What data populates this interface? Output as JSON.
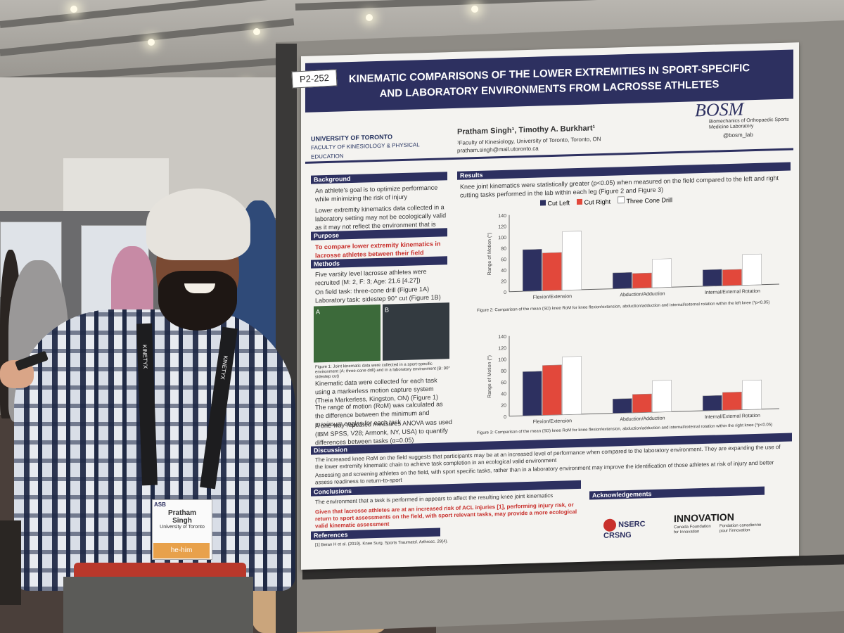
{
  "poster": {
    "id": "P2-252",
    "title_line1": "KINEMATIC COMPARISONS OF THE LOWER EXTREMITIES IN SPORT-SPECIFIC",
    "title_line2": "AND LABORATORY ENVIRONMENTS FROM LACROSSE ATHLETES",
    "authors": "Pratham Singh¹, Timothy A. Burkhart¹",
    "affiliation": "¹Faculty of Kinesiology, University of Toronto, Toronto, ON",
    "email": "pratham.singh@mail.utoronto.ca",
    "university": "UNIVERSITY OF TORONTO",
    "faculty": "FACULTY OF KINESIOLOGY & PHYSICAL EDUCATION",
    "lab_logo": "BOSM",
    "lab_name": "Biomechanics of Orthopaedic Sports Medicine Laboratory",
    "social": "@bosm_lab",
    "background_head": "Background",
    "background_1": "An athlete's goal is to optimize performance while minimizing the risk of injury",
    "background_2": "Lower extremity kinematics data collected in a laboratory setting may not be ecologically valid as it may not reflect the environment that is experienced during sport",
    "purpose_head": "Purpose",
    "purpose": "To compare lower extremity kinematics in lacrosse athletes between their field environment and within the lab",
    "methods_head": "Methods",
    "methods_1": "Five varsity level lacrosse athletes were recruited (M: 2, F: 3; Age: 21.6 [4.27])",
    "methods_2": "On field task: three-cone drill (Figure 1A)",
    "methods_3": "Laboratory task: sidestep 90° cut (Figure 1B)",
    "methods_4": "Kinematic data were collected for each task using a markerless motion capture system (Theia Markerless, Kingston, ON) (Figure 1)",
    "methods_5": "The range of motion (RoM) was calculated as the difference between the minimum and maximum angles for each task",
    "methods_6": "A one-way repeated measures ANOVA was used (IBM SPSS, V28; Armonk, NY, USA) to quantify differences between tasks (α=0.05)",
    "results_head": "Results",
    "results_1": "Knee joint kinematics were statistically greater (p<0.05) when measured on the field compared to the left and right cutting tasks performed in the lab within each leg (Figure 2 and Figure 3)",
    "fig2_caption": "Figure 2: Comparison of the mean (SD) knee RoM for knee flexion/extension, abduction/adduction and internal/external rotation within the left knee (*p<0.05)",
    "fig3_caption": "Figure 3: Comparison of the mean (SD) knee RoM for knee flexion/extension, abduction/adduction and internal/external rotation within the right knee (*p<0.05)",
    "discussion_head": "Discussion",
    "discussion_1": "The increased knee RoM on the field suggests that participants may be at an increased level of performance when compared to the laboratory environment. They are expanding the use of the lower extremity kinematic chain to achieve task completion in an ecological valid environment",
    "discussion_2": "Assessing and screening athletes on the field, with sport specific tasks, rather than in a laboratory environment may improve the identification of those athletes at risk of injury and better assess readiness to return-to-sport",
    "conclusions_head": "Conclusions",
    "conclusions_1": "The environment that a task is performed in appears to affect the resulting knee joint kinematics",
    "conclusions_2": "Given that lacrosse athletes are at an increased risk of ACL injuries [1], performing injury risk, or return to sport assessments on the field, with sport relevant tasks, may provide a more ecological valid kinematic assessment",
    "references_head": "References",
    "reference_1": "[1] Beran H et al. (2019). Knee Surg. Sports Traumatol. Arthrosc. 28(4).",
    "ack_head": "Acknowledgements",
    "nserc": "NSERC CRSNG",
    "innovation": "INNOVATION",
    "innovation_sub": "Canada Foundation for Innovation",
    "innovation_sub_fr": "Fondation canadienne pour l'innovation",
    "fig1_label_a": "A",
    "fig1_label_b": "B",
    "fig1_caption": "Figure 1: Joint kinematic data were collected in a sport-specific environment (A: three-cone drill) and in a laboratory environment (B: 90° sidestep cut)"
  },
  "badge": {
    "first": "Pratham",
    "last": "Singh",
    "org": "University of Toronto",
    "pronoun": "he-him",
    "event": "ASB",
    "lanyard": "KINETYX"
  },
  "chart_data": [
    {
      "type": "bar",
      "ylabel": "Range of Motion (°)",
      "ylim": [
        0,
        140
      ],
      "yticks": [
        0,
        20,
        40,
        60,
        80,
        100,
        120,
        140
      ],
      "categories": [
        "Flexion/Extension",
        "Abduction/Adduction",
        "Internal/External Rotation"
      ],
      "series": [
        {
          "name": "Cut Left",
          "color": "#2d3060",
          "values": [
            76,
            29,
            30
          ]
        },
        {
          "name": "Cut Right",
          "color": "#e2483b",
          "values": [
            69,
            27,
            29
          ]
        },
        {
          "name": "Three Cone Drill",
          "color": "#ffffff",
          "values": [
            107,
            52,
            56
          ]
        }
      ]
    },
    {
      "type": "bar",
      "ylabel": "Range of Motion (°)",
      "ylim": [
        0,
        140
      ],
      "yticks": [
        0,
        20,
        40,
        60,
        80,
        100,
        120,
        140
      ],
      "categories": [
        "Flexion/Extension",
        "Abduction/Adduction",
        "Internal/External Rotation"
      ],
      "series": [
        {
          "name": "Cut Left",
          "color": "#2d3060",
          "values": [
            77,
            25,
            26
          ]
        },
        {
          "name": "Cut Right",
          "color": "#e2483b",
          "values": [
            87,
            32,
            31
          ]
        },
        {
          "name": "Three Cone Drill",
          "color": "#ffffff",
          "values": [
            101,
            55,
            51
          ]
        }
      ]
    }
  ]
}
